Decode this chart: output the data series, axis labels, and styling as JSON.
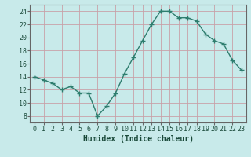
{
  "x": [
    0,
    1,
    2,
    3,
    4,
    5,
    6,
    7,
    8,
    9,
    10,
    11,
    12,
    13,
    14,
    15,
    16,
    17,
    18,
    19,
    20,
    21,
    22,
    23
  ],
  "y": [
    14,
    13.5,
    13,
    12,
    12.5,
    11.5,
    11.5,
    8,
    9.5,
    11.5,
    14.5,
    17,
    19.5,
    22,
    24,
    24,
    23,
    23,
    22.5,
    20.5,
    19.5,
    19,
    16.5,
    15
  ],
  "line_color": "#2e7d6e",
  "marker": "+",
  "marker_size": 4,
  "marker_lw": 1.0,
  "bg_color": "#c8eaea",
  "grid_color": "#c8a0a8",
  "xlabel": "Humidex (Indice chaleur)",
  "xlabel_fontsize": 7,
  "ylabel_ticks": [
    8,
    10,
    12,
    14,
    16,
    18,
    20,
    22,
    24
  ],
  "xlim": [
    -0.5,
    23.5
  ],
  "ylim": [
    7.0,
    25.0
  ],
  "xtick_labels": [
    "0",
    "1",
    "2",
    "3",
    "4",
    "5",
    "6",
    "7",
    "8",
    "9",
    "10",
    "11",
    "12",
    "13",
    "14",
    "15",
    "16",
    "17",
    "18",
    "19",
    "20",
    "21",
    "22",
    "23"
  ],
  "tick_fontsize": 6,
  "line_width": 1.0
}
